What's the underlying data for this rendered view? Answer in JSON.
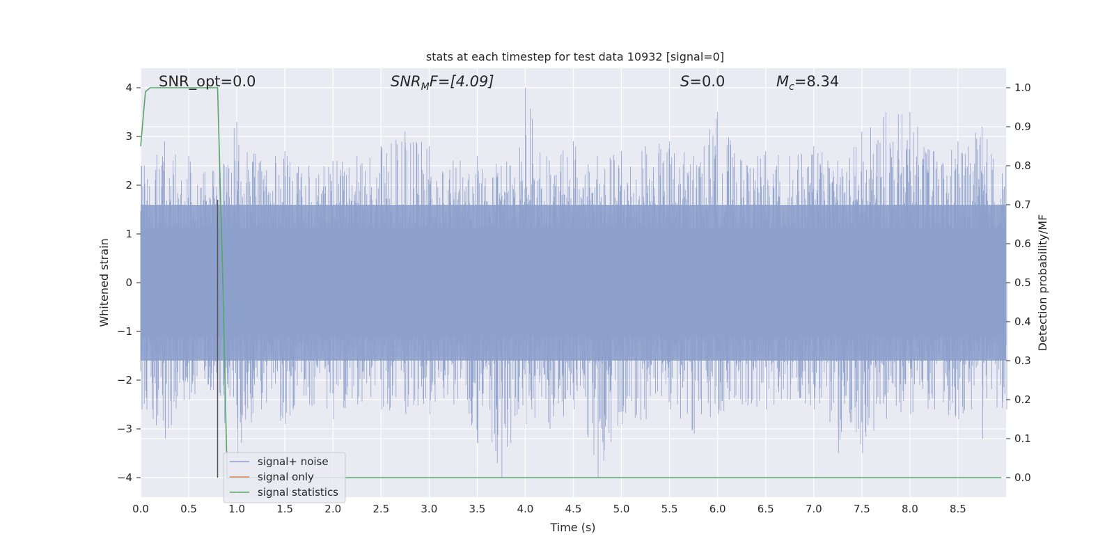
{
  "chart_data": {
    "type": "line",
    "title": "stats at each timestep for test data 10932 [signal=0]",
    "xlabel": "Time (s)",
    "ylabel_left": "Whitened strain",
    "ylabel_right": "Detection probability/MF",
    "xlim": [
      0,
      9
    ],
    "ylim_left": [
      -4.4,
      4.4
    ],
    "ylim_right": [
      -0.05,
      1.05
    ],
    "xticks": [
      0,
      0.5,
      1,
      1.5,
      2,
      2.5,
      3,
      3.5,
      4,
      4.5,
      5,
      5.5,
      6,
      6.5,
      7,
      7.5,
      8,
      8.5
    ],
    "xtick_labels": [
      "0.0",
      "0.5",
      "1.0",
      "1.5",
      "2.0",
      "2.5",
      "3.0",
      "3.5",
      "4.0",
      "4.5",
      "5.0",
      "5.5",
      "6.0",
      "6.5",
      "7.0",
      "7.5",
      "8.0",
      "8.5"
    ],
    "yticks_left": [
      -4,
      -3,
      -2,
      -1,
      0,
      1,
      2,
      3,
      4
    ],
    "ytick_labels_left": [
      "−4",
      "−3",
      "−2",
      "−1",
      "0",
      "1",
      "2",
      "3",
      "4"
    ],
    "yticks_right": [
      0,
      0.1,
      0.2,
      0.3,
      0.4,
      0.5,
      0.6,
      0.7,
      0.8,
      0.9,
      1.0
    ],
    "ytick_labels_right": [
      "0.0",
      "0.1",
      "0.2",
      "0.3",
      "0.4",
      "0.5",
      "0.6",
      "0.7",
      "0.8",
      "0.9",
      "1.0"
    ],
    "grid": true,
    "legend_position": "lower-left",
    "annotations": {
      "snr_opt": "SNR_opt=0.0",
      "snr_mf_main": "SNR",
      "snr_mf_sub": "M",
      "snr_mf_rest": "F=[4.09]",
      "s_main": "S",
      "s_rest": "=0.0",
      "mc_main": "M",
      "mc_sub": "c",
      "mc_rest": "=8.34"
    },
    "marker_line_x": 0.8,
    "series": [
      {
        "name": "signal+ noise",
        "axis": "left",
        "color": "#8c9fcb",
        "envelope": {
          "x": [
            0.0,
            0.25,
            0.5,
            0.75,
            1.0,
            1.25,
            1.5,
            1.75,
            2.0,
            2.25,
            2.5,
            2.75,
            3.0,
            3.25,
            3.5,
            3.75,
            4.0,
            4.25,
            4.5,
            4.75,
            5.0,
            5.25,
            5.5,
            5.75,
            6.0,
            6.25,
            6.5,
            6.75,
            7.0,
            7.25,
            7.5,
            7.75,
            8.0,
            8.25,
            8.5,
            8.75,
            9.0
          ],
          "upper": [
            2.4,
            2.9,
            2.6,
            2.3,
            3.3,
            2.5,
            2.7,
            2.4,
            2.5,
            2.6,
            2.8,
            3.1,
            2.8,
            2.5,
            2.6,
            2.4,
            4.0,
            2.5,
            2.9,
            2.6,
            2.7,
            2.8,
            2.9,
            2.6,
            3.5,
            2.5,
            2.7,
            2.6,
            2.8,
            2.5,
            3.1,
            3.5,
            3.5,
            2.7,
            2.9,
            3.2,
            2.4
          ],
          "lower": [
            -2.6,
            -3.2,
            -2.4,
            -2.2,
            -3.6,
            -2.6,
            -2.9,
            -2.5,
            -2.8,
            -2.5,
            -2.6,
            -2.7,
            -2.7,
            -2.5,
            -3.3,
            -4.0,
            -2.9,
            -3.0,
            -2.6,
            -4.0,
            -2.9,
            -2.8,
            -2.6,
            -3.1,
            -2.7,
            -2.5,
            -2.6,
            -2.4,
            -2.6,
            -3.5,
            -3.5,
            -2.8,
            -2.7,
            -2.6,
            -2.8,
            -3.2,
            -2.6
          ]
        }
      },
      {
        "name": "signal only",
        "axis": "left",
        "color": "#dd8452",
        "values_note": ""
      },
      {
        "name": "signal statistics",
        "axis": "right",
        "color": "#55a868",
        "x": [
          0.0,
          0.05,
          0.1,
          0.15,
          0.2,
          0.3,
          0.4,
          0.5,
          0.6,
          0.7,
          0.8,
          0.85,
          0.9,
          0.95,
          1.0,
          1.5,
          2.0,
          3.0,
          4.0,
          5.0,
          6.0,
          7.0,
          8.0,
          8.95
        ],
        "values": [
          0.85,
          0.99,
          1.0,
          1.0,
          1.0,
          1.0,
          1.0,
          1.0,
          1.0,
          1.0,
          1.0,
          0.55,
          0.0,
          0.0,
          0.0,
          0.0,
          0.0,
          0.0,
          0.0,
          0.0,
          0.0,
          0.0,
          0.0,
          0.0
        ]
      }
    ]
  }
}
